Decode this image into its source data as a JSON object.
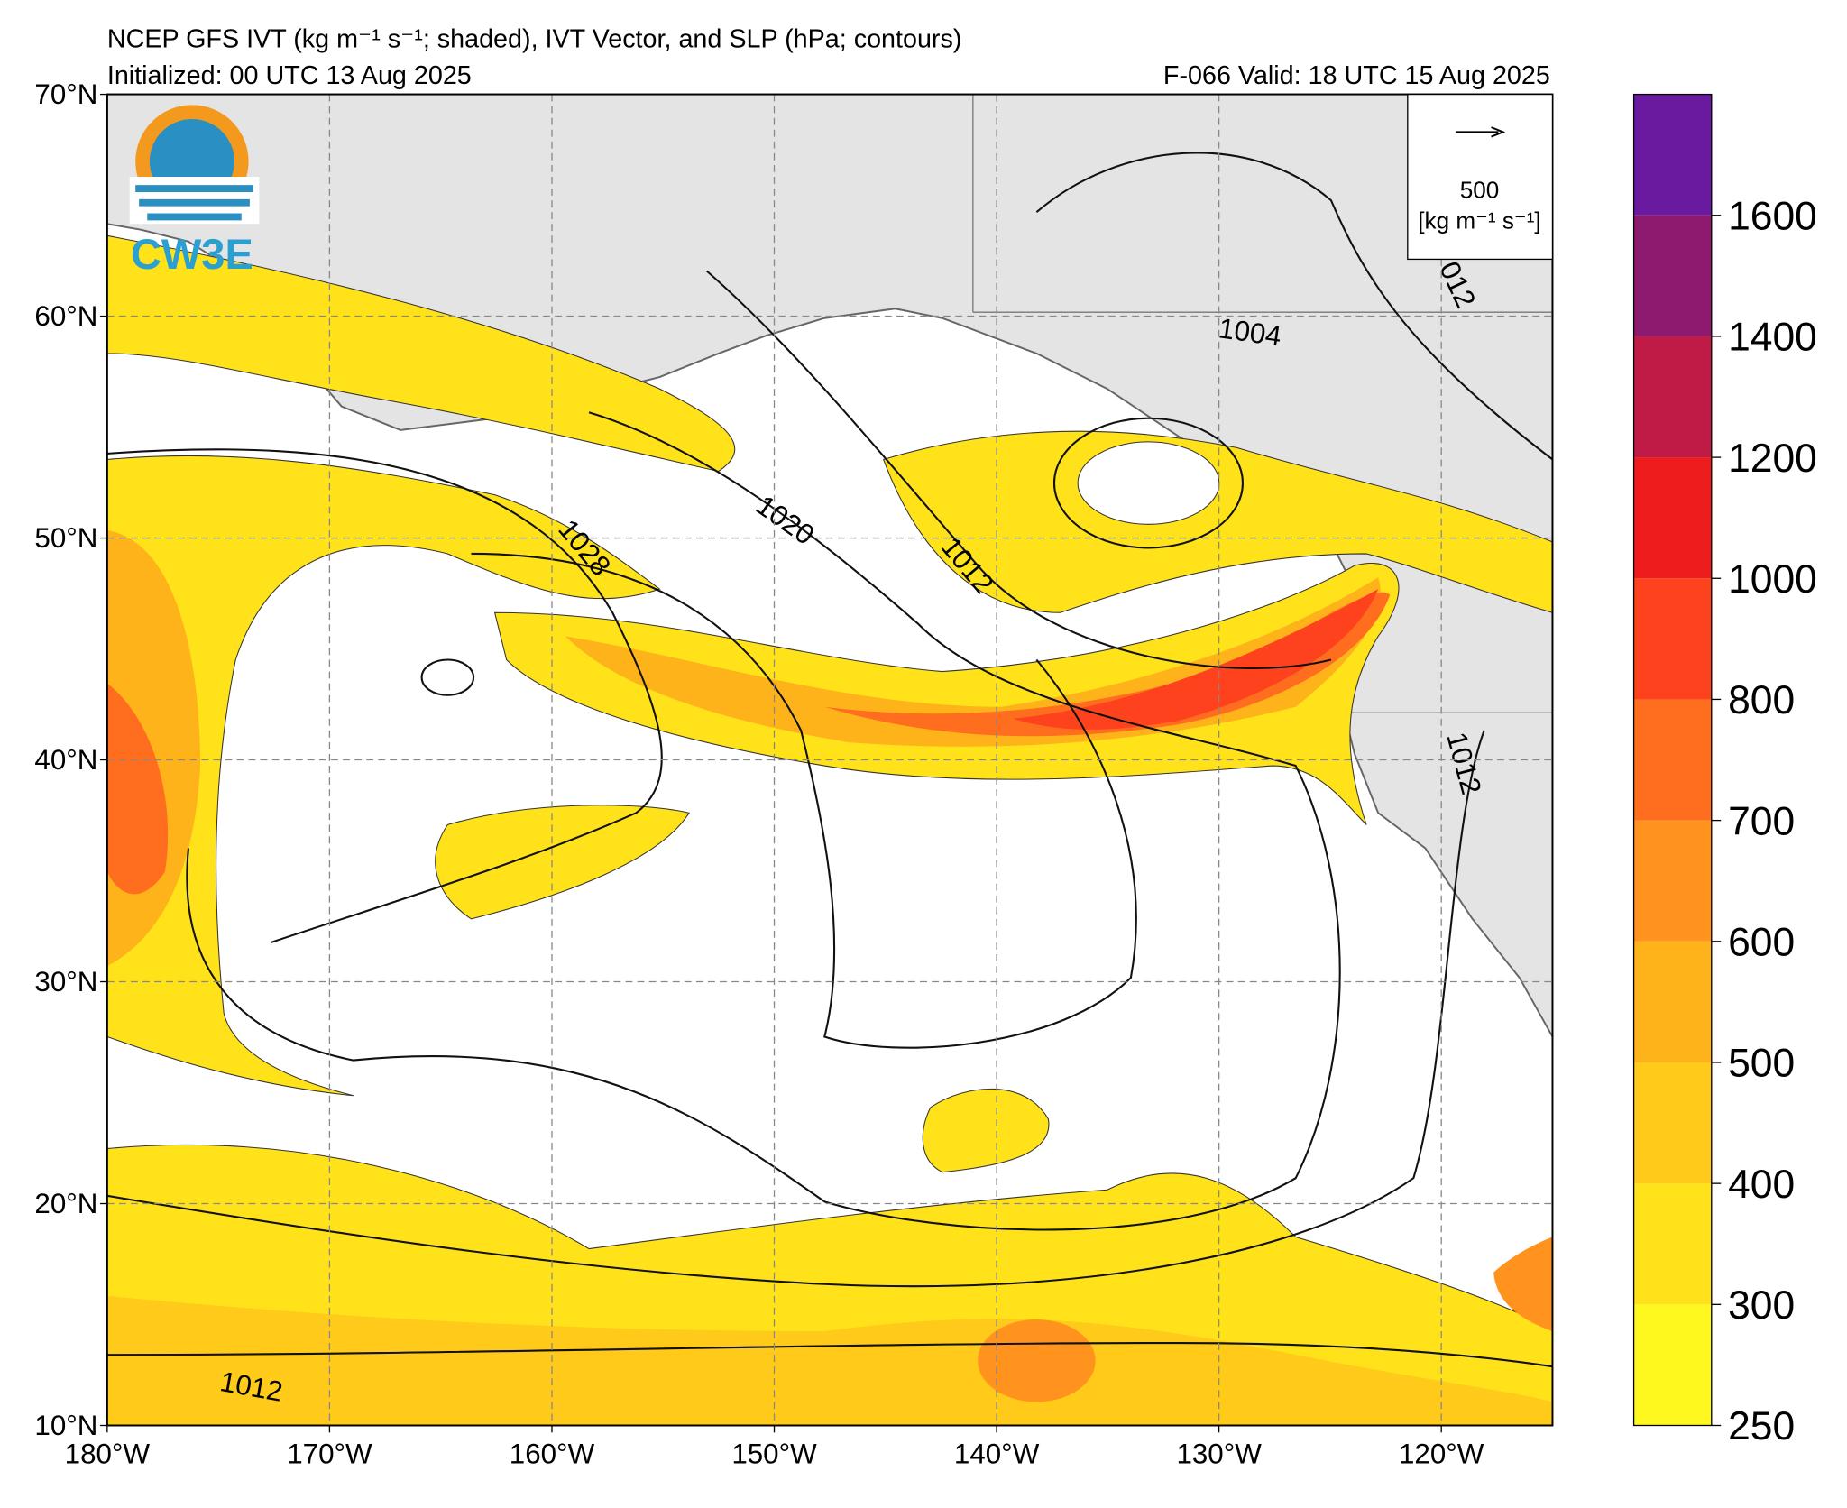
{
  "header": {
    "title": "NCEP GFS IVT (kg m⁻¹ s⁻¹; shaded), IVT Vector, and SLP (hPa; contours)",
    "initialized": "Initialized: 00 UTC 13 Aug 2025",
    "valid": "F-066  Valid: 18 UTC 15 Aug 2025",
    "logo": "CW3E"
  },
  "map": {
    "xlim": [
      -180,
      -115
    ],
    "ylim": [
      10,
      70
    ],
    "xticks": [
      {
        "value": -180,
        "label": "180°W"
      },
      {
        "value": -170,
        "label": "170°W"
      },
      {
        "value": -160,
        "label": "160°W"
      },
      {
        "value": -150,
        "label": "150°W"
      },
      {
        "value": -140,
        "label": "140°W"
      },
      {
        "value": -130,
        "label": "130°W"
      },
      {
        "value": -120,
        "label": "120°W"
      }
    ],
    "yticks": [
      {
        "value": 10,
        "label": "10°N"
      },
      {
        "value": 20,
        "label": "20°N"
      },
      {
        "value": 30,
        "label": "30°N"
      },
      {
        "value": 40,
        "label": "40°N"
      },
      {
        "value": 50,
        "label": "50°N"
      },
      {
        "value": 60,
        "label": "60°N"
      },
      {
        "value": 70,
        "label": "70°N"
      }
    ],
    "grid": true,
    "contour_labels": [
      "1028",
      "1020",
      "1012",
      "1004",
      "012",
      "1012",
      "1012"
    ],
    "vector_legend": {
      "value": "500",
      "units": "[kg m⁻¹ s⁻¹]"
    }
  },
  "colorbar": {
    "ticks": [
      250,
      300,
      400,
      500,
      600,
      700,
      800,
      1000,
      1200,
      1400,
      1600
    ],
    "colors": [
      "#fff81e",
      "#ffe21a",
      "#ffca1a",
      "#ffb31a",
      "#ff931e",
      "#ff6e1e",
      "#ff421e",
      "#ee1c1c",
      "#c01a46",
      "#8e1a70",
      "#6a1a9e"
    ]
  }
}
